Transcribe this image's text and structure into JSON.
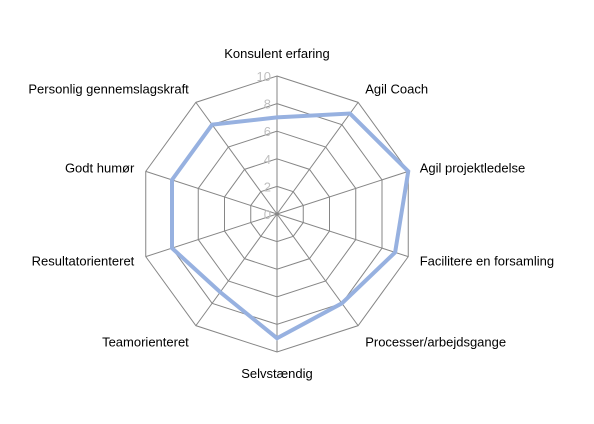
{
  "chart_data": {
    "type": "radar",
    "title": "",
    "categories": [
      "Konsulent erfaring",
      "Agil Coach",
      "Agil projektledelse",
      "Facilitere en forsamling",
      "Processer/arbejdsgange",
      "Selvstændig",
      "Teamorienteret",
      "Resultatorienteret",
      "Godt humør",
      "Personlig gennemslagskraft"
    ],
    "series": [
      {
        "values": [
          7,
          9,
          10,
          9,
          8,
          9,
          7,
          8,
          8,
          8
        ]
      }
    ],
    "r_ticks": [
      "0",
      "2",
      "4",
      "6",
      "8",
      "10"
    ],
    "r_range": [
      0,
      10
    ],
    "gridlines": true,
    "legend": "none",
    "colors": {
      "series": "#97b1e0",
      "grid": "#868686",
      "tick_text": "#bfbfbf"
    }
  }
}
